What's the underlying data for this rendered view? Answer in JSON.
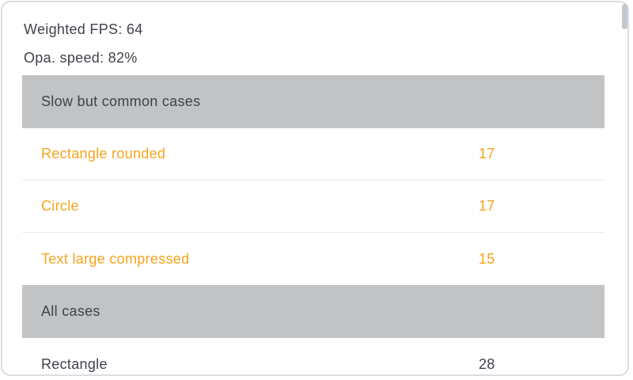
{
  "summary": {
    "weighted_fps": "Weighted FPS: 64",
    "opa_speed": "Opa. speed: 82%"
  },
  "list": {
    "slow_section": {
      "header": "Slow but common cases",
      "rows": [
        {
          "label": "Rectangle rounded",
          "value": "17"
        },
        {
          "label": "Circle",
          "value": "17"
        },
        {
          "label": "Text large compressed",
          "value": "15"
        }
      ]
    },
    "all_section": {
      "header": "All cases",
      "rows": [
        {
          "label": "Rectangle",
          "value": "28"
        }
      ]
    }
  },
  "colors": {
    "accent_orange": "#f6a31c",
    "text_dark": "#3f434b",
    "header_band_gray": "#c2c3c4",
    "divider": "#e7eaed",
    "card_border": "#d9dee3",
    "scrollbar": "#c3c9cf"
  }
}
